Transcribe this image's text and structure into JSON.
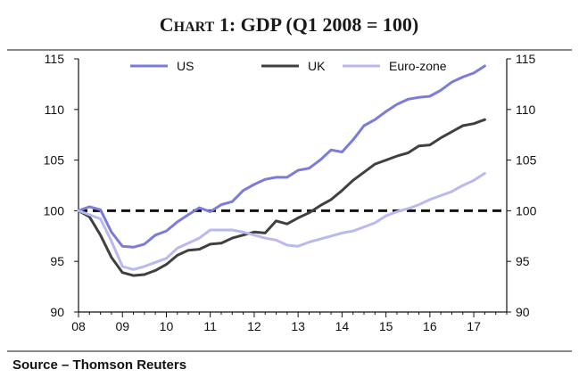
{
  "chart_data": {
    "type": "line",
    "title": "Chart 1: GDP (Q1 2008 = 100)",
    "title_parts": {
      "first": "C",
      "rest_smallcaps": "HART",
      "tail": " 1: GDP (Q1 2008 = 100)"
    },
    "xlabel": "",
    "ylabel": "",
    "xlim": [
      2008,
      2017.75
    ],
    "ylim": [
      90,
      115
    ],
    "x_ticks": [
      {
        "value": 2008,
        "label": "08"
      },
      {
        "value": 2009,
        "label": "09"
      },
      {
        "value": 2010,
        "label": "10"
      },
      {
        "value": 2011,
        "label": "11"
      },
      {
        "value": 2012,
        "label": "12"
      },
      {
        "value": 2013,
        "label": "13"
      },
      {
        "value": 2014,
        "label": "14"
      },
      {
        "value": 2015,
        "label": "15"
      },
      {
        "value": 2016,
        "label": "16"
      },
      {
        "value": 2017,
        "label": "17"
      }
    ],
    "y_ticks": [
      90,
      95,
      100,
      105,
      110,
      115
    ],
    "y_ticks_right": [
      90,
      95,
      100,
      105,
      110,
      115
    ],
    "reference_line": 100,
    "x_start": 2008,
    "x_step": 0.25,
    "legend_position": "top",
    "series": [
      {
        "name": "US",
        "color": "#7b7bdb",
        "values": [
          100,
          100.4,
          100.1,
          97.9,
          96.5,
          96.4,
          96.7,
          97.6,
          98.0,
          98.9,
          99.6,
          100.3,
          99.9,
          100.6,
          100.9,
          102.0,
          102.6,
          103.1,
          103.3,
          103.3,
          104.0,
          104.2,
          105.0,
          106.0,
          105.8,
          107.0,
          108.4,
          109.0,
          109.8,
          110.5,
          111.0,
          111.2,
          111.3,
          111.9,
          112.7,
          113.2,
          113.6,
          114.3
        ]
      },
      {
        "name": "UK",
        "color": "#404040",
        "values": [
          100,
          99.4,
          97.6,
          95.4,
          93.9,
          93.6,
          93.7,
          94.1,
          94.7,
          95.6,
          96.1,
          96.2,
          96.7,
          96.8,
          97.3,
          97.6,
          97.9,
          97.8,
          99.0,
          98.7,
          99.3,
          99.8,
          100.5,
          101.1,
          102.0,
          103.0,
          103.8,
          104.6,
          105.0,
          105.4,
          105.7,
          106.4,
          106.5,
          107.2,
          107.8,
          108.4,
          108.6,
          109.0
        ]
      },
      {
        "name": "Euro-zone",
        "color": "#b9b9ef",
        "values": [
          100,
          99.6,
          99.2,
          97.0,
          94.5,
          94.2,
          94.5,
          94.9,
          95.3,
          96.3,
          96.8,
          97.3,
          98.1,
          98.1,
          98.1,
          97.9,
          97.6,
          97.3,
          97.1,
          96.6,
          96.5,
          96.9,
          97.2,
          97.5,
          97.8,
          98.0,
          98.4,
          98.8,
          99.5,
          99.9,
          100.2,
          100.6,
          101.1,
          101.5,
          101.9,
          102.5,
          103.0,
          103.7
        ]
      }
    ],
    "source": "Source – Thomson Reuters"
  },
  "colors": {
    "axis": "#111111",
    "reference": "#111111",
    "background": "#ffffff"
  }
}
